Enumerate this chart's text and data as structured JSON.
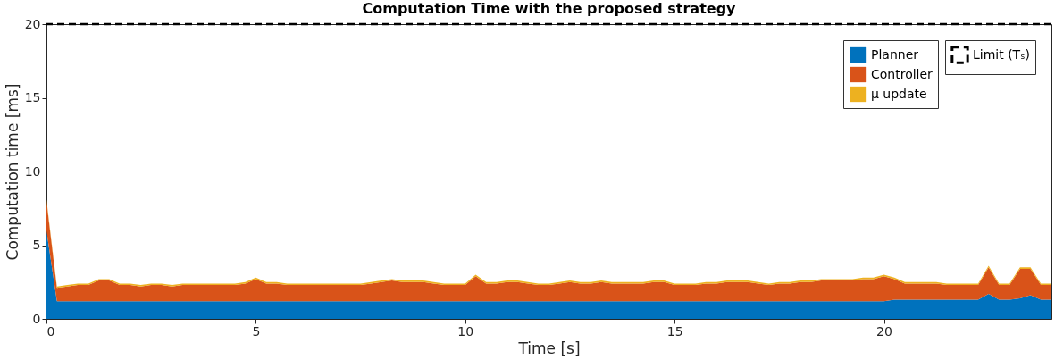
{
  "chart_data": {
    "type": "area",
    "title": "Computation Time with the proposed strategy",
    "xlabel": "Time [s]",
    "ylabel": "Computation time [ms]",
    "stacked": true,
    "grid": false,
    "legend": "top right",
    "xlim": [
      0,
      24
    ],
    "xticks": [
      0,
      5,
      10,
      15,
      20
    ],
    "ylim": [
      0,
      20
    ],
    "yticks": [
      0,
      5,
      10,
      15,
      20
    ],
    "x": [
      0,
      0.25,
      0.5,
      0.75,
      1,
      1.25,
      1.5,
      1.75,
      2,
      2.25,
      2.5,
      2.75,
      3,
      3.25,
      3.5,
      3.75,
      4,
      4.25,
      4.5,
      4.75,
      5,
      5.25,
      5.5,
      5.75,
      6,
      6.25,
      6.5,
      6.75,
      7,
      7.25,
      7.5,
      7.75,
      8,
      8.25,
      8.5,
      8.75,
      9,
      9.25,
      9.5,
      9.75,
      10,
      10.25,
      10.5,
      10.75,
      11,
      11.25,
      11.5,
      11.75,
      12,
      12.25,
      12.5,
      12.75,
      13,
      13.25,
      13.5,
      13.75,
      14,
      14.25,
      14.5,
      14.75,
      15,
      15.25,
      15.5,
      15.75,
      16,
      16.25,
      16.5,
      16.75,
      17,
      17.25,
      17.5,
      17.75,
      18,
      18.25,
      18.5,
      18.75,
      19,
      19.25,
      19.5,
      19.75,
      20,
      20.25,
      20.5,
      20.75,
      21,
      21.25,
      21.5,
      21.75,
      22,
      22.25,
      22.5,
      22.75,
      23,
      23.25,
      23.5,
      23.75,
      24
    ],
    "series": [
      {
        "name": "Planner",
        "color": "#0072bd",
        "values": [
          6.0,
          1.2,
          1.2,
          1.2,
          1.2,
          1.2,
          1.2,
          1.2,
          1.2,
          1.2,
          1.2,
          1.2,
          1.2,
          1.2,
          1.2,
          1.2,
          1.2,
          1.2,
          1.2,
          1.2,
          1.2,
          1.2,
          1.2,
          1.2,
          1.2,
          1.2,
          1.2,
          1.2,
          1.2,
          1.2,
          1.2,
          1.2,
          1.2,
          1.2,
          1.2,
          1.2,
          1.2,
          1.2,
          1.2,
          1.2,
          1.2,
          1.2,
          1.2,
          1.2,
          1.2,
          1.2,
          1.2,
          1.2,
          1.2,
          1.2,
          1.2,
          1.2,
          1.2,
          1.2,
          1.2,
          1.2,
          1.2,
          1.2,
          1.2,
          1.2,
          1.2,
          1.2,
          1.2,
          1.2,
          1.2,
          1.2,
          1.2,
          1.2,
          1.2,
          1.2,
          1.2,
          1.2,
          1.2,
          1.2,
          1.2,
          1.2,
          1.2,
          1.2,
          1.2,
          1.2,
          1.2,
          1.3,
          1.3,
          1.3,
          1.3,
          1.3,
          1.3,
          1.3,
          1.3,
          1.3,
          1.7,
          1.3,
          1.3,
          1.4,
          1.6,
          1.3,
          1.3
        ]
      },
      {
        "name": "Controller",
        "color": "#d95319",
        "values": [
          2.0,
          0.9,
          1.0,
          1.1,
          1.1,
          1.4,
          1.4,
          1.1,
          1.1,
          1.0,
          1.1,
          1.1,
          1.0,
          1.1,
          1.1,
          1.1,
          1.1,
          1.1,
          1.1,
          1.2,
          1.5,
          1.2,
          1.2,
          1.1,
          1.1,
          1.1,
          1.1,
          1.1,
          1.1,
          1.1,
          1.1,
          1.2,
          1.3,
          1.4,
          1.3,
          1.3,
          1.3,
          1.2,
          1.1,
          1.1,
          1.1,
          1.7,
          1.2,
          1.2,
          1.3,
          1.3,
          1.2,
          1.1,
          1.1,
          1.2,
          1.3,
          1.2,
          1.2,
          1.3,
          1.2,
          1.2,
          1.2,
          1.2,
          1.3,
          1.3,
          1.1,
          1.1,
          1.1,
          1.2,
          1.2,
          1.3,
          1.3,
          1.3,
          1.2,
          1.1,
          1.2,
          1.2,
          1.3,
          1.3,
          1.4,
          1.4,
          1.4,
          1.4,
          1.5,
          1.5,
          1.7,
          1.4,
          1.1,
          1.1,
          1.1,
          1.1,
          1.0,
          1.0,
          1.0,
          1.0,
          1.8,
          1.0,
          1.0,
          2.0,
          1.8,
          1.0,
          1.0
        ]
      },
      {
        "name": "μ update",
        "color": "#edb120",
        "values": [
          0.1,
          0.1,
          0.1,
          0.1,
          0.1,
          0.1,
          0.1,
          0.1,
          0.1,
          0.1,
          0.1,
          0.1,
          0.1,
          0.1,
          0.1,
          0.1,
          0.1,
          0.1,
          0.1,
          0.1,
          0.1,
          0.1,
          0.1,
          0.1,
          0.1,
          0.1,
          0.1,
          0.1,
          0.1,
          0.1,
          0.1,
          0.1,
          0.1,
          0.1,
          0.1,
          0.1,
          0.1,
          0.1,
          0.1,
          0.1,
          0.1,
          0.1,
          0.1,
          0.1,
          0.1,
          0.1,
          0.1,
          0.1,
          0.1,
          0.1,
          0.1,
          0.1,
          0.1,
          0.1,
          0.1,
          0.1,
          0.1,
          0.1,
          0.1,
          0.1,
          0.1,
          0.1,
          0.1,
          0.1,
          0.1,
          0.1,
          0.1,
          0.1,
          0.1,
          0.1,
          0.1,
          0.1,
          0.1,
          0.1,
          0.1,
          0.1,
          0.1,
          0.1,
          0.1,
          0.1,
          0.1,
          0.1,
          0.1,
          0.1,
          0.1,
          0.1,
          0.1,
          0.1,
          0.1,
          0.1,
          0.1,
          0.1,
          0.1,
          0.1,
          0.1,
          0.1,
          0.1
        ]
      }
    ],
    "ref_lines": [
      {
        "axis": "y",
        "value": 20,
        "label": "Limit (Tₛ)",
        "color": "#000000",
        "line_style": "dashed"
      }
    ]
  }
}
